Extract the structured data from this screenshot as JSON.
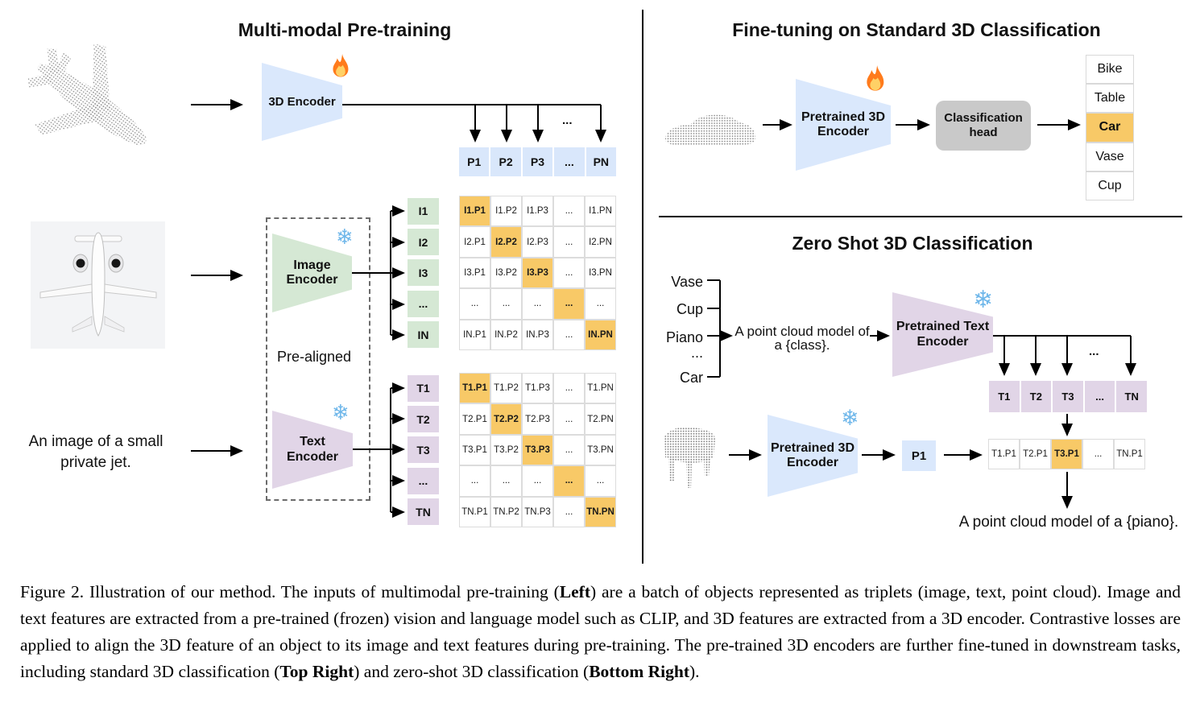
{
  "left": {
    "title": "Multi-modal Pre-training",
    "encoder3d_label": "3D Encoder",
    "image_encoder_lines": [
      "Image",
      "Encoder"
    ],
    "text_encoder_lines": [
      "Text",
      "Encoder"
    ],
    "pre_aligned_label": "Pre-aligned",
    "text_input_lines": [
      "An image of a small",
      "private jet."
    ],
    "p_header": [
      "P1",
      "P2",
      "P3",
      "...",
      "PN"
    ],
    "p_dots": "...",
    "i_labels": [
      "I1",
      "I2",
      "I3",
      "...",
      "IN"
    ],
    "t_labels": [
      "T1",
      "T2",
      "T3",
      "...",
      "TN"
    ],
    "i_matrix": [
      [
        "I1.P1",
        "I1.P2",
        "I1.P3",
        "...",
        "I1.PN"
      ],
      [
        "I2.P1",
        "I2.P2",
        "I2.P3",
        "...",
        "I2.PN"
      ],
      [
        "I3.P1",
        "I3.P2",
        "I3.P3",
        "...",
        "I3.PN"
      ],
      [
        "...",
        "...",
        "...",
        "...",
        "..."
      ],
      [
        "IN.P1",
        "IN.P2",
        "IN.P3",
        "...",
        "IN.PN"
      ]
    ],
    "t_matrix": [
      [
        "T1.P1",
        "T1.P2",
        "T1.P3",
        "...",
        "T1.PN"
      ],
      [
        "T2.P1",
        "T2.P2",
        "T2.P3",
        "...",
        "T2.PN"
      ],
      [
        "T3.P1",
        "T3.P2",
        "T3.P3",
        "...",
        "T3.PN"
      ],
      [
        "...",
        "...",
        "...",
        "...",
        "..."
      ],
      [
        "TN.P1",
        "TN.P2",
        "TN.P3",
        "...",
        "TN.PN"
      ]
    ]
  },
  "top_right": {
    "title": "Fine-tuning on Standard 3D Classification",
    "encoder_lines": [
      "Pretrained 3D",
      "Encoder"
    ],
    "head_lines": [
      "Classification",
      "head"
    ],
    "classes": [
      "Bike",
      "Table",
      "Car",
      "Vase",
      "Cup"
    ],
    "highlighted_class": "Car"
  },
  "bottom_right": {
    "title": "Zero Shot 3D Classification",
    "classes": [
      "Vase",
      "Cup",
      "Piano",
      "...",
      "Car"
    ],
    "prompt_lines": [
      "A point cloud model of",
      "a {class}."
    ],
    "text_encoder_lines": [
      "Pretrained Text",
      "Encoder"
    ],
    "t_cells": [
      "T1",
      "T2",
      "T3",
      "...",
      "TN"
    ],
    "t_dots": "...",
    "encoder3d_lines": [
      "Pretrained 3D",
      "Encoder"
    ],
    "p1_label": "P1",
    "result_cells": [
      "T1.P1",
      "T2.P1",
      "T3.P1",
      "...",
      "TN.P1"
    ],
    "result_highlight": "T3.P1",
    "result_text": "A point cloud model of a {piano}."
  },
  "caption": {
    "segments": [
      {
        "text": "Figure 2. Illustration of our method. The inputs of multimodal pre-training (",
        "bold": false
      },
      {
        "text": "Left",
        "bold": true
      },
      {
        "text": ") are a batch of objects represented as triplets (image, text, point cloud). Image and text features are extracted from a pre-trained (frozen) vision and language model such as CLIP, and 3D features are extracted from a 3D encoder. Contrastive losses are applied to align the 3D feature of an object to its image and text features during pre-training. The pre-trained 3D encoders are further fine-tuned in downstream tasks, including standard 3D classification (",
        "bold": false
      },
      {
        "text": "Top Right",
        "bold": true
      },
      {
        "text": ") and zero-shot 3D classification (",
        "bold": false
      },
      {
        "text": "Bottom Right",
        "bold": true
      },
      {
        "text": ").",
        "bold": false
      }
    ]
  },
  "icons": {
    "fire": "fire-icon",
    "snowflake": "snowflake-icon",
    "airplane_point_cloud": "airplane-point-cloud",
    "airplane_photo": "airplane-photo",
    "car_point_cloud": "car-point-cloud",
    "piano_point_cloud": "piano-point-cloud"
  },
  "colors": {
    "blue_fill": "#dae8fc",
    "green_fill": "#d5e8d4",
    "purple_fill": "#e1d5e7",
    "highlight_orange": "#F8C967",
    "gray_head": "#c9c9c9",
    "cell_border": "#dcdcdc",
    "point_cloud_gray": "#8f8f8f"
  }
}
